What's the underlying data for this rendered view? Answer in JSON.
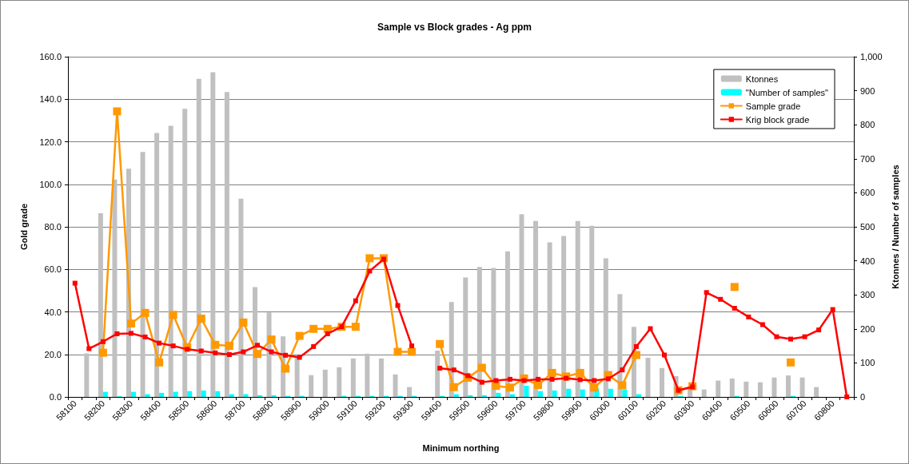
{
  "chart_data": {
    "type": "bar",
    "title": "Sample vs Block grades - Ag ppm",
    "xlabel": "Minimum northing",
    "ylabel": "Gold grade",
    "y2label": "Ktonnes / Number of samples",
    "categories": [
      "58100",
      null,
      "58200",
      null,
      "58300",
      null,
      "58400",
      null,
      "58500",
      null,
      "58600",
      null,
      "58700",
      null,
      "58800",
      null,
      "58900",
      null,
      "59000",
      null,
      "59100",
      null,
      "59200",
      null,
      "59300",
      null,
      "59400",
      null,
      "59500",
      null,
      "59600",
      null,
      "59700",
      null,
      "59800",
      null,
      "59900",
      null,
      "60000",
      null,
      "60100",
      null,
      "60200",
      null,
      "60300",
      null,
      "60400",
      null,
      "60500",
      null,
      "60600",
      null,
      "60700",
      null,
      "60800",
      null
    ],
    "series": [
      {
        "name": "Ktonnes",
        "axis": "y2",
        "color": "#c0c0c0",
        "values": [
          null,
          128,
          540,
          639,
          671,
          720,
          776,
          797,
          847,
          935,
          954,
          896,
          583,
          323,
          248,
          178,
          117,
          64,
          80,
          87,
          113,
          127,
          113,
          66,
          29,
          null,
          136,
          279,
          351,
          382,
          379,
          428,
          537,
          517,
          454,
          473,
          517,
          503,
          407,
          302,
          206,
          115,
          85,
          61,
          27,
          22,
          48,
          54,
          45,
          43,
          57,
          63,
          57,
          29,
          null,
          null
        ]
      },
      {
        "name": "\"Number of samples\"",
        "axis": "y2",
        "color": "#00ffff",
        "values": [
          null,
          null,
          15,
          2,
          15,
          8,
          12,
          15,
          17,
          19,
          17,
          8,
          8,
          5,
          5,
          3,
          3,
          null,
          null,
          3,
          3,
          3,
          3,
          3,
          3,
          null,
          3,
          8,
          5,
          5,
          12,
          8,
          33,
          17,
          19,
          24,
          22,
          25,
          24,
          22,
          8,
          null,
          null,
          3,
          null,
          null,
          null,
          3,
          null,
          null,
          null,
          3,
          null,
          null,
          null,
          null
        ]
      },
      {
        "name": "Sample grade",
        "type": "line",
        "color": "#ff9900",
        "values": [
          null,
          null,
          20.8,
          134.3,
          34.5,
          39.5,
          16.2,
          38.6,
          23.3,
          36.8,
          24.5,
          24.0,
          35.0,
          20.2,
          27.0,
          13.3,
          28.7,
          32.0,
          32.0,
          33.0,
          33.0,
          65.2,
          65.2,
          21.2,
          21.2,
          null,
          24.9,
          4.6,
          9.0,
          13.7,
          5.2,
          4.4,
          8.7,
          5.6,
          11.3,
          9.6,
          11.3,
          4.4,
          10.3,
          5.5,
          19.7,
          null,
          null,
          3.1,
          5.0,
          null,
          null,
          51.7,
          null,
          null,
          null,
          16.2,
          null,
          null,
          null,
          null
        ]
      },
      {
        "name": "Krig block grade",
        "type": "line",
        "color": "#ff0000",
        "values": [
          53.5,
          22.7,
          26.0,
          29.7,
          29.9,
          28.2,
          25.3,
          24.0,
          22.4,
          21.6,
          20.7,
          19.9,
          21.2,
          24.3,
          21.2,
          19.6,
          18.6,
          23.7,
          29.7,
          33.0,
          45.2,
          59.2,
          64.8,
          43.0,
          24.0,
          null,
          13.5,
          12.7,
          10.0,
          6.9,
          7.7,
          8.3,
          7.7,
          8.3,
          8.3,
          8.8,
          8.1,
          7.7,
          8.5,
          12.7,
          23.7,
          32.1,
          19.7,
          3.1,
          4.7,
          49.1,
          45.9,
          41.7,
          37.6,
          34.0,
          28.3,
          27.2,
          28.3,
          31.5,
          41.1,
          0
        ]
      }
    ],
    "ylim": [
      0,
      160
    ],
    "yticks": [
      {
        "value": 0,
        "label": "0.0"
      },
      {
        "value": 20,
        "label": "20.0"
      },
      {
        "value": 40,
        "label": "40.0"
      },
      {
        "value": 60,
        "label": "60.0"
      },
      {
        "value": 80,
        "label": "80.0"
      },
      {
        "value": 100,
        "label": "100.0"
      },
      {
        "value": 120,
        "label": "120.0"
      },
      {
        "value": 140,
        "label": "140.0"
      },
      {
        "value": 160,
        "label": "160.0"
      }
    ],
    "y2lim": [
      0,
      1000
    ],
    "y2ticks": [
      0,
      100,
      200,
      300,
      400,
      500,
      600,
      700,
      800,
      900,
      {
        "value": 1000,
        "label": "1,000"
      }
    ],
    "grid": "y",
    "legend": "top right",
    "marker": "square",
    "line_style": "solid"
  }
}
